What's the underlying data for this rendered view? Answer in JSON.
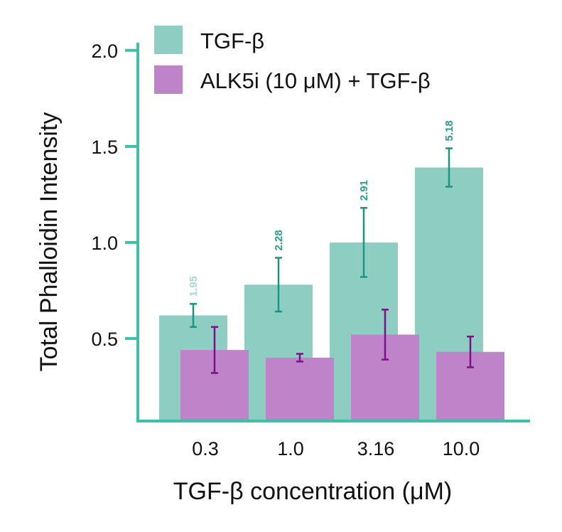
{
  "chart_data": {
    "type": "bar",
    "xlabel": "TGF-β concentration (μM)",
    "ylabel": "Total Phalloidin Intensity",
    "categories": [
      "0.3",
      "1.0",
      "3.16",
      "10.0"
    ],
    "y_ticks": [
      "0.5",
      "1.0",
      "1.5",
      "2.0"
    ],
    "ylim": [
      0.07,
      2.04
    ],
    "legend_position": "top-left",
    "grid": false,
    "series": [
      {
        "name": "TGF-β",
        "color": "#8ecdc2",
        "error_color": "#1e9482",
        "values": [
          0.62,
          0.78,
          1.0,
          1.39
        ],
        "errors": [
          0.06,
          0.14,
          0.18,
          0.1
        ],
        "labels": [
          "1.95",
          "2.28",
          "2.91",
          "5.18"
        ],
        "label_color": "#2a9d8a"
      },
      {
        "name": "ALK5i (10 μM) + TGF-β",
        "color": "#be83c9",
        "error_color": "#7b1287",
        "values": [
          0.44,
          0.4,
          0.52,
          0.43
        ],
        "errors": [
          0.12,
          0.02,
          0.13,
          0.08
        ],
        "labels": [
          "",
          "",
          "",
          ""
        ],
        "label_color": "#c9a8cf"
      }
    ],
    "axis_color": "#3dbfa8"
  }
}
